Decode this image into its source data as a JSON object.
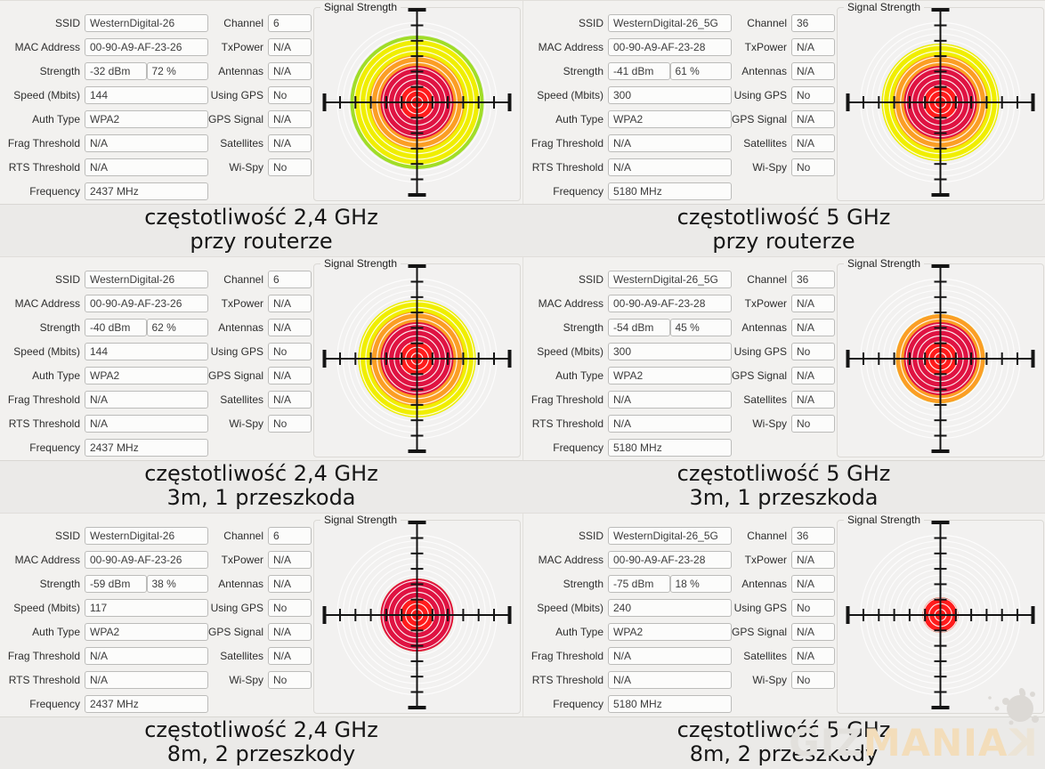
{
  "page": {
    "background": "#ebeae8",
    "watermark": {
      "part_gray": "GIZ",
      "part_tan": "MANIA",
      "part_flipped": "K"
    }
  },
  "field_labels": {
    "left": [
      "SSID",
      "MAC Address",
      "Strength",
      "Speed (Mbits)",
      "Auth Type",
      "Frag Threshold",
      "RTS Threshold",
      "Frequency"
    ],
    "right": [
      "Channel",
      "TxPower",
      "Antennas",
      "Using GPS",
      "GPS Signal",
      "Satellites",
      "Wi-Spy"
    ]
  },
  "radar": {
    "title": "Signal Strength",
    "max_radius": 96,
    "ring_step": 6.4,
    "axis_half_length": 104,
    "tick_spacing": 17.3,
    "background_ring_color": "#ffffff",
    "plot_background": "#f2f1f0",
    "crosshair_color": "#141414",
    "bands": [
      {
        "radius": 19,
        "color": "#ff1c1c"
      },
      {
        "radius": 41,
        "color": "#df1342"
      },
      {
        "radius": 53,
        "color": "#fb9e25"
      },
      {
        "radius": 71,
        "color": "#f0ee00"
      },
      {
        "radius": 96,
        "color": "#a0dd28"
      }
    ]
  },
  "panels": [
    {
      "id": "24ghz-at-router",
      "fields": {
        "ssid": "WesternDigital-26",
        "mac_address": "00-90-A9-AF-23-26",
        "strength_dbm": "-32 dBm",
        "strength_percent": "72 %",
        "speed_mbits": "144",
        "auth_type": "WPA2",
        "frag_threshold": "N/A",
        "rts_threshold": "N/A",
        "frequency": "2437 MHz",
        "channel": "6",
        "tx_power": "N/A",
        "antennas": "N/A",
        "using_gps": "No",
        "gps_signal": "N/A",
        "satellites": "N/A",
        "wi_spy": "No"
      },
      "signal": {
        "percent": 72,
        "disc_radius": 75
      },
      "caption": {
        "line1": "częstotliwość 2,4 GHz",
        "line2": "przy routerze"
      }
    },
    {
      "id": "5ghz-at-router",
      "fields": {
        "ssid": "WesternDigital-26_5G",
        "mac_address": "00-90-A9-AF-23-28",
        "strength_dbm": "-41 dBm",
        "strength_percent": "61 %",
        "speed_mbits": "300",
        "auth_type": "WPA2",
        "frag_threshold": "N/A",
        "rts_threshold": "N/A",
        "frequency": "5180 MHz",
        "channel": "36",
        "tx_power": "N/A",
        "antennas": "N/A",
        "using_gps": "No",
        "gps_signal": "N/A",
        "satellites": "N/A",
        "wi_spy": "No"
      },
      "signal": {
        "percent": 61,
        "disc_radius": 66
      },
      "caption": {
        "line1": "częstotliwość 5 GHz",
        "line2": "przy routerze"
      }
    },
    {
      "id": "24ghz-3m-1-obstacle",
      "fields": {
        "ssid": "WesternDigital-26",
        "mac_address": "00-90-A9-AF-23-26",
        "strength_dbm": "-40 dBm",
        "strength_percent": "62 %",
        "speed_mbits": "144",
        "auth_type": "WPA2",
        "frag_threshold": "N/A",
        "rts_threshold": "N/A",
        "frequency": "2437 MHz",
        "channel": "6",
        "tx_power": "N/A",
        "antennas": "N/A",
        "using_gps": "No",
        "gps_signal": "N/A",
        "satellites": "N/A",
        "wi_spy": "No"
      },
      "signal": {
        "percent": 62,
        "disc_radius": 66
      },
      "caption": {
        "line1": "częstotliwość 2,4 GHz",
        "line2": "3m, 1 przeszkoda"
      }
    },
    {
      "id": "5ghz-3m-1-obstacle",
      "fields": {
        "ssid": "WesternDigital-26_5G",
        "mac_address": "00-90-A9-AF-23-28",
        "strength_dbm": "-54 dBm",
        "strength_percent": "45 %",
        "speed_mbits": "300",
        "auth_type": "WPA2",
        "frag_threshold": "N/A",
        "rts_threshold": "N/A",
        "frequency": "5180 MHz",
        "channel": "36",
        "tx_power": "N/A",
        "antennas": "N/A",
        "using_gps": "No",
        "gps_signal": "N/A",
        "satellites": "N/A",
        "wi_spy": "No"
      },
      "signal": {
        "percent": 45,
        "disc_radius": 50
      },
      "caption": {
        "line1": "częstotliwość 5 GHz",
        "line2": "3m, 1 przeszkoda"
      }
    },
    {
      "id": "24ghz-8m-2-obstacles",
      "fields": {
        "ssid": "WesternDigital-26",
        "mac_address": "00-90-A9-AF-23-26",
        "strength_dbm": "-59 dBm",
        "strength_percent": "38 %",
        "speed_mbits": "117",
        "auth_type": "WPA2",
        "frag_threshold": "N/A",
        "rts_threshold": "N/A",
        "frequency": "2437 MHz",
        "channel": "6",
        "tx_power": "N/A",
        "antennas": "N/A",
        "using_gps": "No",
        "gps_signal": "N/A",
        "satellites": "N/A",
        "wi_spy": "No"
      },
      "signal": {
        "percent": 38,
        "disc_radius": 41
      },
      "caption": {
        "line1": "częstotliwość 2,4 GHz",
        "line2": "8m, 2 przeszkody"
      }
    },
    {
      "id": "5ghz-8m-2-obstacles",
      "fields": {
        "ssid": "WesternDigital-26_5G",
        "mac_address": "00-90-A9-AF-23-28",
        "strength_dbm": "-75 dBm",
        "strength_percent": "18 %",
        "speed_mbits": "240",
        "auth_type": "WPA2",
        "frag_threshold": "N/A",
        "rts_threshold": "N/A",
        "frequency": "5180 MHz",
        "channel": "36",
        "tx_power": "N/A",
        "antennas": "N/A",
        "using_gps": "No",
        "gps_signal": "N/A",
        "satellites": "N/A",
        "wi_spy": "No"
      },
      "signal": {
        "percent": 18,
        "disc_radius": 20
      },
      "caption": {
        "line1": "częstotliwość 5 GHz",
        "line2": "8m, 2 przeszkody"
      }
    }
  ]
}
